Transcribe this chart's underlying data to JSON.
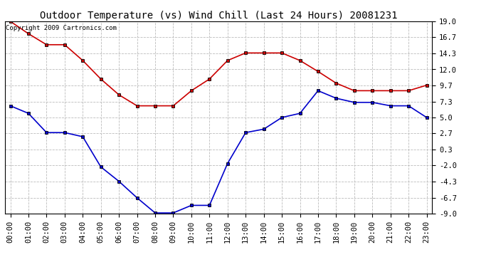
{
  "title": "Outdoor Temperature (vs) Wind Chill (Last 24 Hours) 20081231",
  "copyright_text": "Copyright 2009 Cartronics.com",
  "hours": [
    "00:00",
    "01:00",
    "02:00",
    "03:00",
    "04:00",
    "05:00",
    "06:00",
    "07:00",
    "08:00",
    "09:00",
    "10:00",
    "11:00",
    "12:00",
    "13:00",
    "14:00",
    "15:00",
    "16:00",
    "17:00",
    "18:00",
    "19:00",
    "20:00",
    "21:00",
    "22:00",
    "23:00"
  ],
  "temp_red": [
    19.0,
    17.2,
    15.6,
    15.6,
    13.3,
    10.6,
    8.3,
    6.7,
    6.7,
    6.7,
    8.9,
    10.6,
    13.3,
    14.4,
    14.4,
    14.4,
    13.3,
    11.7,
    10.0,
    8.9,
    8.9,
    8.9,
    8.9,
    9.7
  ],
  "wind_blue": [
    6.7,
    5.6,
    2.8,
    2.8,
    2.2,
    -2.2,
    -4.3,
    -6.7,
    -8.9,
    -8.9,
    -7.8,
    -7.8,
    -1.7,
    2.8,
    3.3,
    5.0,
    5.6,
    8.9,
    7.8,
    7.2,
    7.2,
    6.7,
    6.7,
    5.0
  ],
  "ylim": [
    -9.0,
    19.0
  ],
  "yticks": [
    -9.0,
    -6.7,
    -4.3,
    -2.0,
    0.3,
    2.7,
    5.0,
    7.3,
    9.7,
    12.0,
    14.3,
    16.7,
    19.0
  ],
  "red_color": "#cc0000",
  "blue_color": "#0000cc",
  "bg_color": "#ffffff",
  "grid_color": "#bbbbbb",
  "title_fontsize": 10,
  "copyright_fontsize": 6.5,
  "tick_fontsize": 7.5
}
